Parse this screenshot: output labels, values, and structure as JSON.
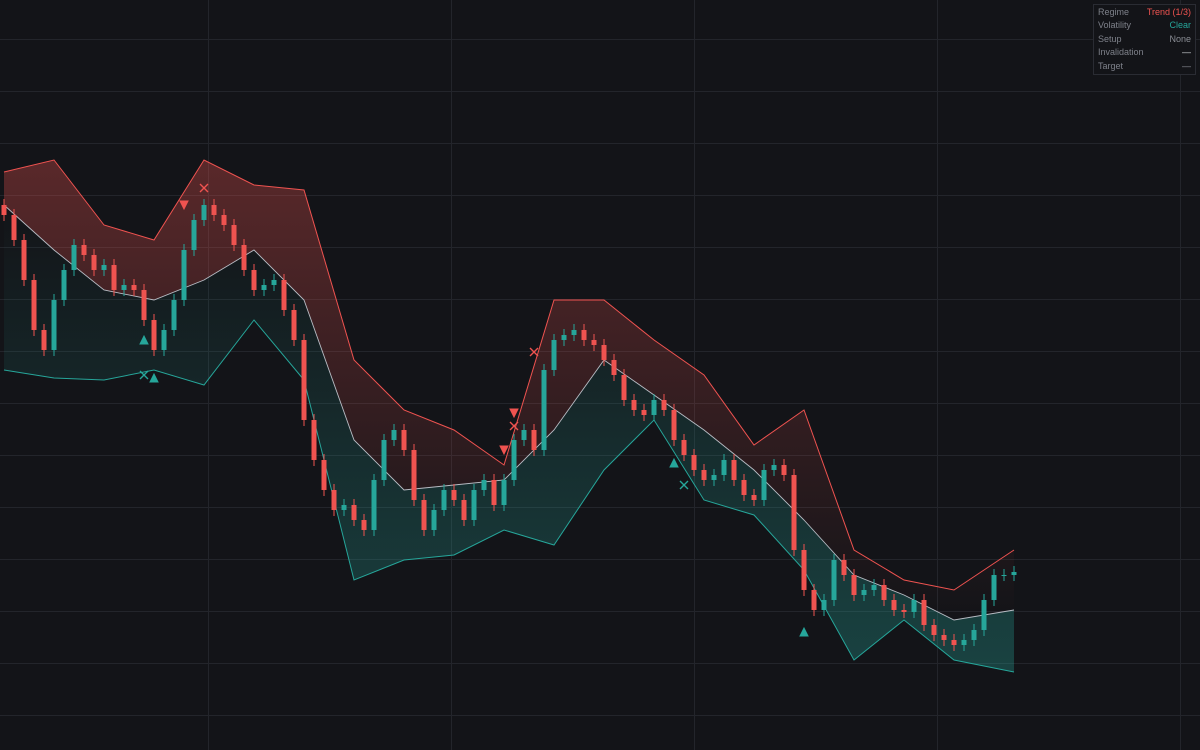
{
  "chart_data": {
    "type": "candlestick",
    "ylim": [
      0,
      750
    ],
    "up_color": "#26a69a",
    "down_color": "#ef5350",
    "mid_color": "#b8bcc4",
    "candles": [
      [
        545,
        551,
        529,
        535
      ],
      [
        535,
        541,
        504,
        510
      ],
      [
        510,
        516,
        464,
        470
      ],
      [
        470,
        476,
        414,
        420
      ],
      [
        420,
        426,
        394,
        400
      ],
      [
        400,
        456,
        394,
        450
      ],
      [
        450,
        486,
        444,
        480
      ],
      [
        480,
        511,
        474,
        505
      ],
      [
        505,
        511,
        489,
        495
      ],
      [
        495,
        501,
        474,
        480
      ],
      [
        480,
        491,
        474,
        485
      ],
      [
        485,
        491,
        454,
        460
      ],
      [
        460,
        471,
        454,
        465
      ],
      [
        465,
        471,
        454,
        460
      ],
      [
        460,
        466,
        424,
        430
      ],
      [
        430,
        436,
        394,
        400
      ],
      [
        400,
        426,
        394,
        420
      ],
      [
        420,
        456,
        414,
        450
      ],
      [
        450,
        506,
        444,
        500
      ],
      [
        500,
        536,
        494,
        530
      ],
      [
        530,
        551,
        524,
        545
      ],
      [
        545,
        551,
        529,
        535
      ],
      [
        535,
        541,
        519,
        525
      ],
      [
        525,
        531,
        499,
        505
      ],
      [
        505,
        511,
        474,
        480
      ],
      [
        480,
        486,
        454,
        460
      ],
      [
        460,
        471,
        454,
        465
      ],
      [
        465,
        476,
        459,
        470
      ],
      [
        470,
        476,
        434,
        440
      ],
      [
        440,
        446,
        404,
        410
      ],
      [
        410,
        416,
        324,
        330
      ],
      [
        330,
        336,
        284,
        290
      ],
      [
        290,
        296,
        254,
        260
      ],
      [
        260,
        266,
        234,
        240
      ],
      [
        240,
        251,
        234,
        245
      ],
      [
        245,
        251,
        224,
        230
      ],
      [
        230,
        236,
        214,
        220
      ],
      [
        220,
        276,
        214,
        270
      ],
      [
        270,
        316,
        264,
        310
      ],
      [
        310,
        326,
        304,
        320
      ],
      [
        320,
        326,
        294,
        300
      ],
      [
        300,
        306,
        244,
        250
      ],
      [
        250,
        256,
        214,
        220
      ],
      [
        220,
        246,
        214,
        240
      ],
      [
        240,
        266,
        234,
        260
      ],
      [
        260,
        266,
        244,
        250
      ],
      [
        250,
        256,
        224,
        230
      ],
      [
        230,
        266,
        224,
        260
      ],
      [
        260,
        276,
        254,
        270
      ],
      [
        270,
        276,
        239,
        245
      ],
      [
        245,
        276,
        239,
        270
      ],
      [
        270,
        316,
        264,
        310
      ],
      [
        310,
        326,
        304,
        320
      ],
      [
        320,
        326,
        294,
        300
      ],
      [
        300,
        386,
        294,
        380
      ],
      [
        380,
        416,
        374,
        410
      ],
      [
        410,
        421,
        404,
        415
      ],
      [
        415,
        426,
        409,
        420
      ],
      [
        420,
        426,
        404,
        410
      ],
      [
        410,
        416,
        399,
        405
      ],
      [
        405,
        411,
        384,
        390
      ],
      [
        390,
        396,
        369,
        375
      ],
      [
        375,
        381,
        344,
        350
      ],
      [
        350,
        356,
        334,
        340
      ],
      [
        340,
        346,
        329,
        335
      ],
      [
        335,
        356,
        329,
        350
      ],
      [
        350,
        356,
        334,
        340
      ],
      [
        340,
        346,
        304,
        310
      ],
      [
        310,
        316,
        289,
        295
      ],
      [
        295,
        301,
        274,
        280
      ],
      [
        280,
        286,
        264,
        270
      ],
      [
        270,
        281,
        264,
        275
      ],
      [
        275,
        296,
        269,
        290
      ],
      [
        290,
        296,
        264,
        270
      ],
      [
        270,
        276,
        249,
        255
      ],
      [
        255,
        261,
        244,
        250
      ],
      [
        250,
        286,
        244,
        280
      ],
      [
        280,
        291,
        274,
        285
      ],
      [
        285,
        291,
        269,
        275
      ],
      [
        275,
        281,
        194,
        200
      ],
      [
        200,
        206,
        154,
        160
      ],
      [
        160,
        166,
        134,
        140
      ],
      [
        140,
        156,
        134,
        150
      ],
      [
        150,
        196,
        144,
        190
      ],
      [
        190,
        196,
        169,
        175
      ],
      [
        175,
        181,
        149,
        155
      ],
      [
        155,
        166,
        149,
        160
      ],
      [
        160,
        171,
        154,
        165
      ],
      [
        165,
        171,
        144,
        150
      ],
      [
        150,
        156,
        134,
        140
      ],
      [
        140,
        146,
        132,
        138
      ],
      [
        138,
        156,
        132,
        150
      ],
      [
        150,
        156,
        119,
        125
      ],
      [
        125,
        131,
        109,
        115
      ],
      [
        115,
        121,
        104,
        110
      ],
      [
        110,
        116,
        99,
        105
      ],
      [
        105,
        116,
        99,
        110
      ],
      [
        110,
        126,
        104,
        120
      ],
      [
        120,
        156,
        114,
        150
      ],
      [
        150,
        181,
        144,
        175
      ],
      [
        175,
        181,
        169,
        175
      ],
      [
        175,
        184,
        169,
        178
      ]
    ],
    "bands": {
      "x": [
        0,
        5,
        10,
        15,
        20,
        25,
        30,
        35,
        40,
        45,
        50,
        55,
        60,
        65,
        70,
        75,
        80,
        85,
        90,
        95,
        101
      ],
      "upper": [
        578,
        590,
        525,
        510,
        590,
        565,
        560,
        390,
        340,
        320,
        285,
        450,
        450,
        410,
        375,
        305,
        340,
        200,
        170,
        160,
        200
      ],
      "mid": [
        545,
        500,
        460,
        450,
        470,
        500,
        450,
        310,
        260,
        265,
        270,
        320,
        390,
        355,
        320,
        280,
        230,
        175,
        155,
        130,
        140
      ],
      "lower": [
        380,
        372,
        370,
        380,
        365,
        430,
        370,
        170,
        190,
        195,
        220,
        205,
        280,
        330,
        250,
        235,
        180,
        90,
        130,
        90,
        78
      ]
    },
    "markers": [
      {
        "x": 18,
        "y": 545,
        "shape": "triangle-down",
        "color": "#ef5350"
      },
      {
        "x": 50,
        "y": 300,
        "shape": "triangle-down",
        "color": "#ef5350"
      },
      {
        "x": 51,
        "y": 337,
        "shape": "triangle-down",
        "color": "#ef5350"
      },
      {
        "x": 14,
        "y": 410,
        "shape": "triangle-up",
        "color": "#26a69a"
      },
      {
        "x": 15,
        "y": 372,
        "shape": "triangle-up",
        "color": "#26a69a"
      },
      {
        "x": 67,
        "y": 287,
        "shape": "triangle-up",
        "color": "#26a69a"
      },
      {
        "x": 80,
        "y": 118,
        "shape": "triangle-up",
        "color": "#26a69a"
      },
      {
        "x": 20,
        "y": 562,
        "shape": "cross",
        "color": "#ef5350"
      },
      {
        "x": 53,
        "y": 398,
        "shape": "cross",
        "color": "#ef5350"
      },
      {
        "x": 51,
        "y": 324,
        "shape": "cross",
        "color": "#ef5350"
      },
      {
        "x": 14,
        "y": 375,
        "shape": "cross",
        "color": "#26a69a"
      },
      {
        "x": 68,
        "y": 265,
        "shape": "cross",
        "color": "#26a69a"
      }
    ]
  },
  "panel": {
    "rows": [
      {
        "label": "Regime",
        "value": "Trend (1/3)",
        "color": "#ef5350"
      },
      {
        "label": "Volatility",
        "value": "Clear",
        "color": "#26a69a"
      },
      {
        "label": "Setup",
        "value": "None",
        "color": "#8a8d94"
      },
      {
        "label": "Invalidation",
        "value": "—",
        "color": "#d0d3d8"
      },
      {
        "label": "Target",
        "value": "—",
        "color": "#8a8d94"
      }
    ]
  }
}
